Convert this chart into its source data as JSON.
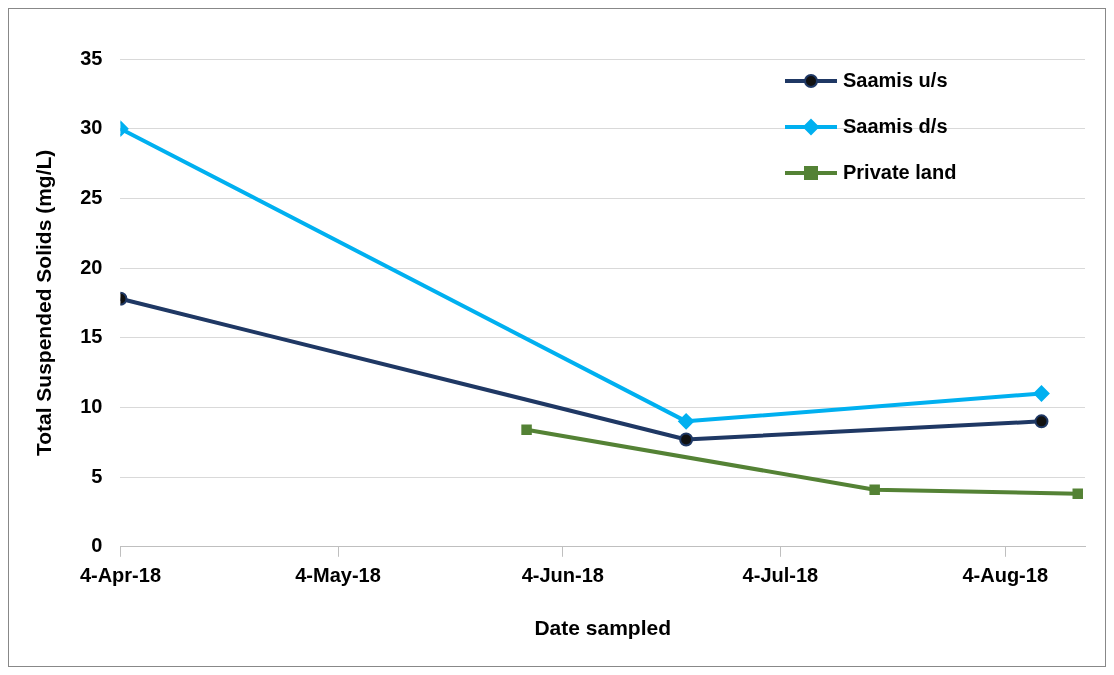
{
  "chart_data": {
    "type": "line",
    "xlabel": "Date sampled",
    "ylabel": "Total Suspended Solids (mg/L)",
    "xlim": [
      "2018-04-04",
      "2018-08-15"
    ],
    "xticks": [
      {
        "value": "2018-04-04",
        "label": "4-Apr-18"
      },
      {
        "value": "2018-05-04",
        "label": "4-May-18"
      },
      {
        "value": "2018-06-04",
        "label": "4-Jun-18"
      },
      {
        "value": "2018-07-04",
        "label": "4-Jul-18"
      },
      {
        "value": "2018-08-04",
        "label": "4-Aug-18"
      }
    ],
    "ylim": [
      0,
      35
    ],
    "yticks": [
      0,
      5,
      10,
      15,
      20,
      25,
      30,
      35
    ],
    "grid": "y",
    "legend": "top right",
    "series": [
      {
        "name": "Saamis u/s",
        "color": "#1f3864",
        "marker": "circle",
        "x": [
          "2018-04-04",
          "2018-06-21",
          "2018-08-09"
        ],
        "values": [
          17.8,
          7.7,
          9.0
        ]
      },
      {
        "name": "Saamis d/s",
        "color": "#00b0f0",
        "marker": "diamond",
        "x": [
          "2018-04-04",
          "2018-06-21",
          "2018-08-09"
        ],
        "values": [
          30,
          9.0,
          11.0
        ]
      },
      {
        "name": "Private land",
        "color": "#548235",
        "marker": "square",
        "x": [
          "2018-05-30",
          "2018-07-17",
          "2018-08-14"
        ],
        "values": [
          8.4,
          4.1,
          3.8
        ]
      }
    ]
  }
}
